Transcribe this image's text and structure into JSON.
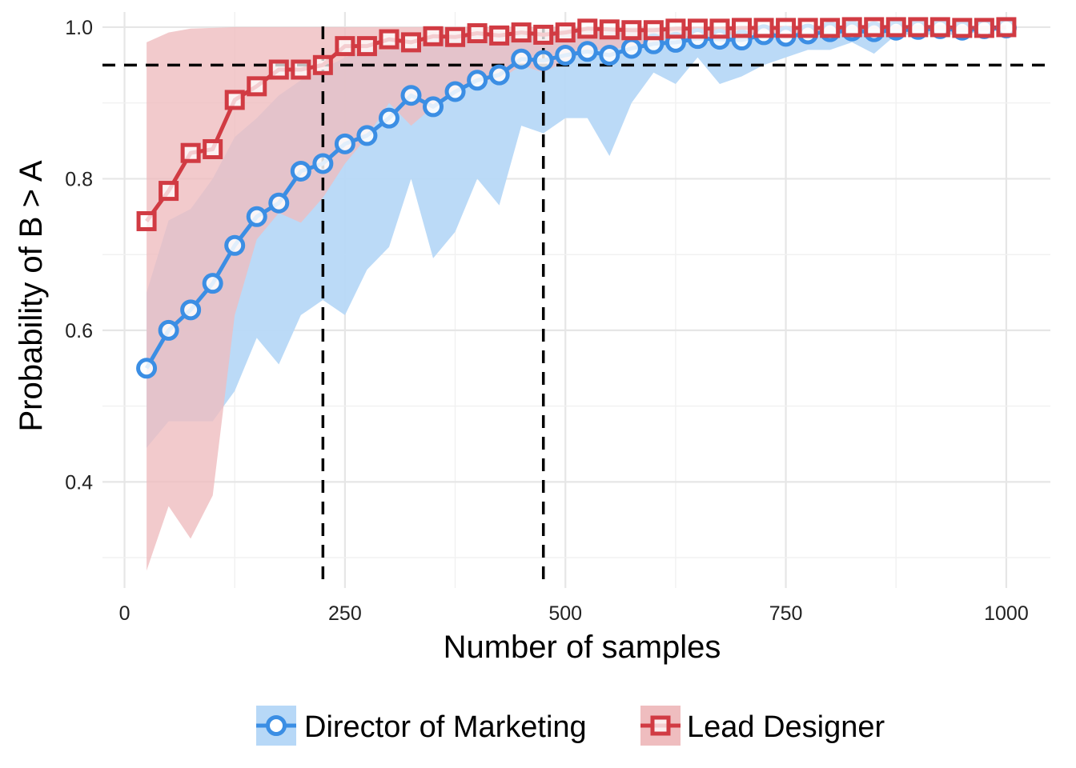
{
  "chart_data": {
    "type": "line",
    "xlabel": "Number of samples",
    "ylabel": "Probability of B > A",
    "xlim": [
      -25,
      1050
    ],
    "ylim": [
      0.26,
      1.02
    ],
    "x_ticks": [
      0,
      250,
      500,
      750,
      1000
    ],
    "x_tick_labels": [
      "0",
      "250",
      "500",
      "750",
      "1000"
    ],
    "y_ticks": [
      0.4,
      0.6,
      0.8,
      1.0
    ],
    "y_tick_labels": [
      "0.4",
      "0.6",
      "0.8",
      "1.0"
    ],
    "grid": true,
    "legend_position": "bottom",
    "reference_lines": {
      "horizontal": [
        0.95
      ],
      "vertical": [
        225,
        475
      ]
    },
    "x": [
      25,
      50,
      75,
      100,
      125,
      150,
      175,
      200,
      225,
      250,
      275,
      300,
      325,
      350,
      375,
      400,
      425,
      450,
      475,
      500,
      525,
      550,
      575,
      600,
      625,
      650,
      675,
      700,
      725,
      750,
      775,
      800,
      825,
      850,
      875,
      900,
      925,
      950,
      975,
      1000
    ],
    "series": [
      {
        "name": "Director of Marketing",
        "color": "#3B8EE4",
        "band_color": "#B7D8F7",
        "marker": "circle",
        "values": [
          0.55,
          0.6,
          0.627,
          0.662,
          0.712,
          0.75,
          0.768,
          0.81,
          0.82,
          0.846,
          0.857,
          0.88,
          0.91,
          0.895,
          0.915,
          0.93,
          0.937,
          0.958,
          0.956,
          0.963,
          0.968,
          0.963,
          0.972,
          0.978,
          0.98,
          0.985,
          0.984,
          0.983,
          0.99,
          0.988,
          0.991,
          0.994,
          0.995,
          0.994,
          0.996,
          0.997,
          0.998,
          0.996,
          0.998,
          0.999
        ],
        "lower": [
          0.445,
          0.48,
          0.48,
          0.48,
          0.52,
          0.59,
          0.555,
          0.62,
          0.64,
          0.62,
          0.68,
          0.71,
          0.8,
          0.695,
          0.73,
          0.8,
          0.765,
          0.87,
          0.86,
          0.88,
          0.88,
          0.83,
          0.9,
          0.94,
          0.925,
          0.96,
          0.925,
          0.935,
          0.95,
          0.96,
          0.97,
          0.97,
          0.98,
          0.965,
          0.99,
          0.99,
          0.99,
          0.99,
          0.995,
          0.995
        ],
        "upper": [
          0.65,
          0.745,
          0.76,
          0.8,
          0.855,
          0.88,
          0.91,
          0.93,
          0.945,
          0.96,
          0.97,
          0.97,
          0.975,
          0.985,
          0.99,
          0.99,
          0.99,
          0.995,
          0.995,
          0.997,
          0.998,
          0.999,
          0.999,
          0.999,
          0.999,
          1.0,
          1.0,
          1.0,
          1.0,
          1.0,
          1.0,
          1.0,
          1.0,
          1.0,
          1.0,
          1.0,
          1.0,
          1.0,
          1.0,
          1.0
        ]
      },
      {
        "name": "Lead Designer",
        "color": "#D13B43",
        "band_color": "#EFBDBF",
        "marker": "square",
        "values": [
          0.744,
          0.784,
          0.834,
          0.839,
          0.904,
          0.922,
          0.944,
          0.944,
          0.95,
          0.975,
          0.975,
          0.984,
          0.98,
          0.988,
          0.987,
          0.992,
          0.989,
          0.993,
          0.99,
          0.993,
          0.998,
          0.997,
          0.996,
          0.996,
          0.998,
          0.998,
          0.998,
          0.999,
          0.999,
          0.999,
          0.999,
          0.999,
          1.0,
          1.0,
          1.0,
          1.0,
          1.0,
          0.999,
          0.999,
          1.0
        ],
        "lower": [
          0.283,
          0.368,
          0.325,
          0.382,
          0.62,
          0.72,
          0.755,
          0.742,
          0.775,
          0.82,
          0.855,
          0.9,
          0.87,
          0.895,
          0.91,
          0.93,
          0.93,
          0.95,
          0.94,
          0.955,
          0.97,
          0.97,
          0.975,
          0.98,
          0.985,
          0.985,
          0.99,
          0.99,
          0.99,
          0.99,
          0.995,
          0.995,
          0.995,
          0.995,
          0.995,
          0.998,
          0.998,
          0.998,
          0.998,
          0.998
        ],
        "upper": [
          0.98,
          0.993,
          0.998,
          0.999,
          1.0,
          1.0,
          1.0,
          1.0,
          1.0,
          1.0,
          1.0,
          1.0,
          1.0,
          1.0,
          1.0,
          1.0,
          1.0,
          1.0,
          1.0,
          1.0,
          1.0,
          1.0,
          1.0,
          1.0,
          1.0,
          1.0,
          1.0,
          1.0,
          1.0,
          1.0,
          1.0,
          1.0,
          1.0,
          1.0,
          1.0,
          1.0,
          1.0,
          1.0,
          1.0,
          1.0
        ]
      }
    ]
  }
}
